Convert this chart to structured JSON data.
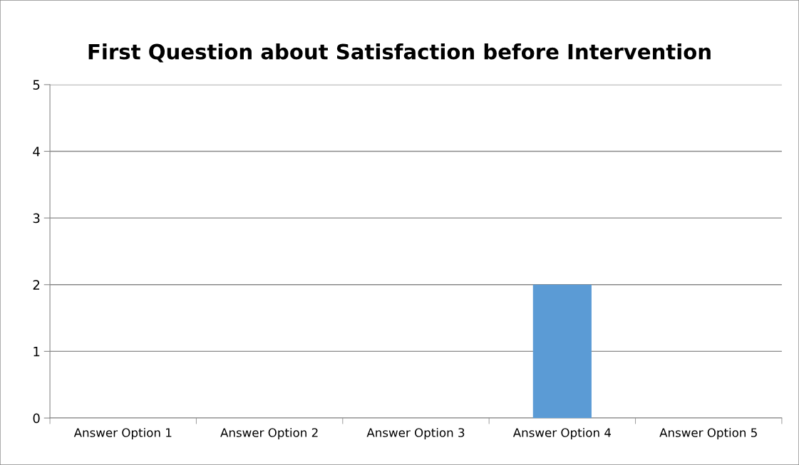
{
  "chart_data": {
    "type": "bar",
    "title": "First Question about Satisfaction before Intervention",
    "categories": [
      "Answer Option 1",
      "Answer Option 2",
      "Answer Option 3",
      "Answer Option 4",
      "Answer Option 5"
    ],
    "values": [
      0,
      0,
      0,
      2,
      0
    ],
    "color": "#5b9bd5",
    "ylim": [
      0,
      5
    ],
    "yticks": [
      0,
      1,
      2,
      3,
      4,
      5
    ],
    "grid": "y",
    "legend": false
  }
}
